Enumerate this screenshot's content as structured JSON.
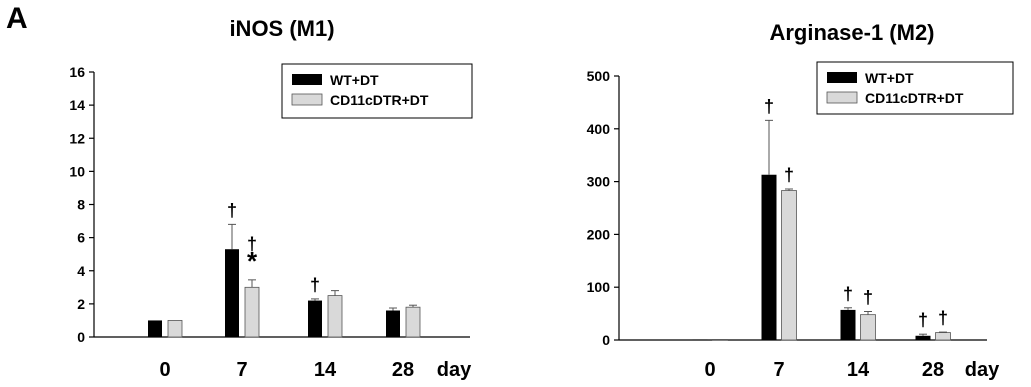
{
  "panel_label": "A",
  "colors": {
    "series1": "#000000",
    "series2": "#d9d9d9",
    "axis": "#000000"
  },
  "chart_data": [
    {
      "type": "bar",
      "title": "iNOS (M1)",
      "xlabel": "day",
      "ylabel": "",
      "categories": [
        "0",
        "7",
        "14",
        "28"
      ],
      "ylim": [
        0,
        16
      ],
      "yticks": [
        0,
        2,
        4,
        6,
        8,
        10,
        12,
        14,
        16
      ],
      "legend_position": "top-right",
      "grid": false,
      "series": [
        {
          "name": "WT+DT",
          "values": [
            1.0,
            5.3,
            2.2,
            1.6
          ],
          "errors": [
            0,
            1.5,
            0.1,
            0.15
          ]
        },
        {
          "name": "CD11cDTR+DT",
          "values": [
            1.0,
            3.0,
            2.5,
            1.8
          ],
          "errors": [
            0,
            0.45,
            0.3,
            0.12
          ]
        }
      ],
      "annotations": [
        {
          "series": 0,
          "category": 1,
          "text": "†"
        },
        {
          "series": 1,
          "category": 1,
          "text": "†"
        },
        {
          "series": 1,
          "category": 1,
          "text": "*"
        },
        {
          "series": 0,
          "category": 2,
          "text": "†"
        }
      ]
    },
    {
      "type": "bar",
      "title": "Arginase-1 (M2)",
      "xlabel": "day",
      "ylabel": "",
      "categories": [
        "0",
        "7",
        "14",
        "28"
      ],
      "ylim": [
        0,
        500
      ],
      "yticks": [
        0,
        100,
        200,
        300,
        400,
        500
      ],
      "legend_position": "top-right",
      "grid": false,
      "series": [
        {
          "name": "WT+DT",
          "values": [
            1,
            313,
            57,
            8
          ],
          "errors": [
            0,
            103,
            4,
            3
          ]
        },
        {
          "name": "CD11cDTR+DT",
          "values": [
            1,
            283,
            48,
            14
          ],
          "errors": [
            0,
            3,
            6,
            1
          ]
        }
      ],
      "annotations": [
        {
          "series": 0,
          "category": 1,
          "text": "†"
        },
        {
          "series": 1,
          "category": 1,
          "text": "†"
        },
        {
          "series": 0,
          "category": 2,
          "text": "†"
        },
        {
          "series": 1,
          "category": 2,
          "text": "†"
        },
        {
          "series": 0,
          "category": 3,
          "text": "†"
        },
        {
          "series": 1,
          "category": 3,
          "text": "†"
        }
      ]
    }
  ]
}
